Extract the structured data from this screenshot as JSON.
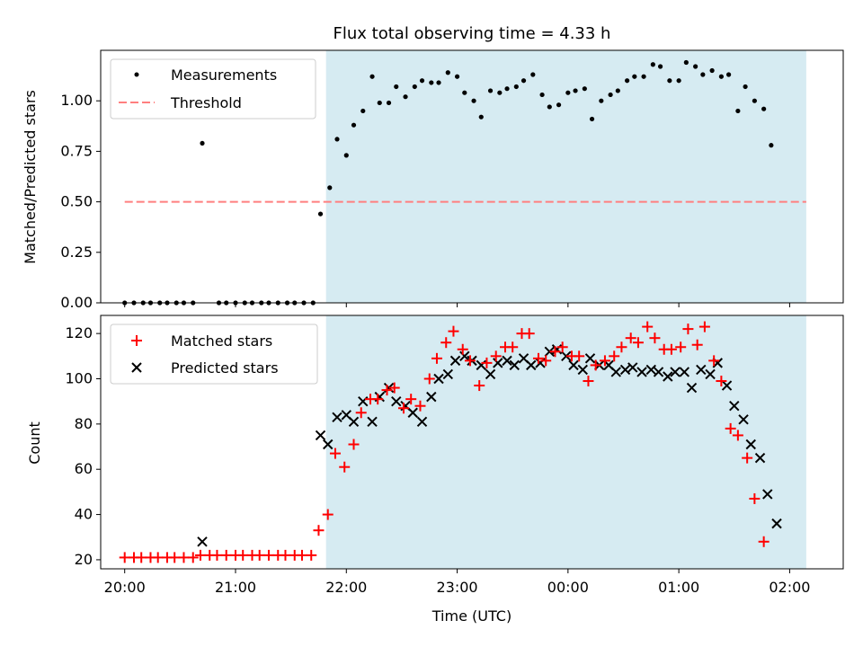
{
  "chart_data": [
    {
      "type": "scatter",
      "title": "Flux total observing time = 4.33 h",
      "xlabel": "",
      "ylabel": "Matched/Predicted stars",
      "ylim": [
        0,
        1.25
      ],
      "xlim": [
        "19:47",
        "02:29"
      ],
      "yticks": [
        "0.00",
        "0.25",
        "0.50",
        "0.75",
        "1.00"
      ],
      "yticks_values": [
        0,
        0.25,
        0.5,
        0.75,
        1.0
      ],
      "shaded_region": {
        "x_start": "21:49",
        "x_end": "02:09",
        "color": "#add8e6"
      },
      "threshold": {
        "name": "Threshold",
        "value": 0.5,
        "x_start": "20:00",
        "x_end": "02:09",
        "color": "#ff7f7f"
      },
      "legend": {
        "position": "top-left",
        "entries": [
          "Measurements",
          "Threshold"
        ]
      },
      "series": [
        {
          "name": "Measurements",
          "color": "#000000",
          "points": [
            [
              "20:00",
              0.0
            ],
            [
              "20:05",
              0.0
            ],
            [
              "20:10",
              0.0
            ],
            [
              "20:14",
              0.0
            ],
            [
              "20:19",
              0.0
            ],
            [
              "20:23",
              0.0
            ],
            [
              "20:28",
              0.0
            ],
            [
              "20:32",
              0.0
            ],
            [
              "20:37",
              0.0
            ],
            [
              "20:42",
              0.79
            ],
            [
              "20:51",
              0.0
            ],
            [
              "20:55",
              0.0
            ],
            [
              "21:00",
              0.0
            ],
            [
              "21:05",
              0.0
            ],
            [
              "21:09",
              0.0
            ],
            [
              "21:14",
              0.0
            ],
            [
              "21:18",
              0.0
            ],
            [
              "21:23",
              0.0
            ],
            [
              "21:28",
              0.0
            ],
            [
              "21:32",
              0.0
            ],
            [
              "21:37",
              0.0
            ],
            [
              "21:42",
              0.0
            ],
            [
              "21:46",
              0.44
            ],
            [
              "21:51",
              0.57
            ],
            [
              "21:55",
              0.81
            ],
            [
              "22:00",
              0.73
            ],
            [
              "22:04",
              0.88
            ],
            [
              "22:09",
              0.95
            ],
            [
              "22:14",
              1.12
            ],
            [
              "22:18",
              0.99
            ],
            [
              "22:23",
              0.99
            ],
            [
              "22:27",
              1.07
            ],
            [
              "22:32",
              1.02
            ],
            [
              "22:37",
              1.07
            ],
            [
              "22:41",
              1.1
            ],
            [
              "22:46",
              1.09
            ],
            [
              "22:50",
              1.09
            ],
            [
              "22:55",
              1.14
            ],
            [
              "23:00",
              1.12
            ],
            [
              "23:04",
              1.04
            ],
            [
              "23:09",
              1.0
            ],
            [
              "23:13",
              0.92
            ],
            [
              "23:18",
              1.05
            ],
            [
              "23:23",
              1.04
            ],
            [
              "23:27",
              1.06
            ],
            [
              "23:32",
              1.07
            ],
            [
              "23:36",
              1.1
            ],
            [
              "23:41",
              1.13
            ],
            [
              "23:46",
              1.03
            ],
            [
              "23:50",
              0.97
            ],
            [
              "23:55",
              0.98
            ],
            [
              "00:00",
              1.04
            ],
            [
              "00:04",
              1.05
            ],
            [
              "00:09",
              1.06
            ],
            [
              "00:13",
              0.91
            ],
            [
              "00:18",
              1.0
            ],
            [
              "00:23",
              1.03
            ],
            [
              "00:27",
              1.05
            ],
            [
              "00:32",
              1.1
            ],
            [
              "00:36",
              1.12
            ],
            [
              "00:41",
              1.12
            ],
            [
              "00:46",
              1.18
            ],
            [
              "00:50",
              1.17
            ],
            [
              "00:55",
              1.1
            ],
            [
              "01:00",
              1.1
            ],
            [
              "01:04",
              1.19
            ],
            [
              "01:09",
              1.17
            ],
            [
              "01:13",
              1.13
            ],
            [
              "01:18",
              1.15
            ],
            [
              "01:23",
              1.12
            ],
            [
              "01:27",
              1.13
            ],
            [
              "01:32",
              0.95
            ],
            [
              "01:36",
              1.07
            ],
            [
              "01:41",
              1.0
            ],
            [
              "01:46",
              0.96
            ],
            [
              "01:50",
              0.78
            ]
          ]
        }
      ]
    },
    {
      "type": "scatter",
      "title": "",
      "xlabel": "Time (UTC)",
      "ylabel": "Count",
      "ylim": [
        16,
        128
      ],
      "xlim": [
        "19:47",
        "02:29"
      ],
      "xticks": [
        "20:00",
        "21:00",
        "22:00",
        "23:00",
        "00:00",
        "01:00",
        "02:00"
      ],
      "yticks": [
        "20",
        "40",
        "60",
        "80",
        "100",
        "120"
      ],
      "yticks_values": [
        20,
        40,
        60,
        80,
        100,
        120
      ],
      "shaded_region": {
        "x_start": "21:49",
        "x_end": "02:09",
        "color": "#add8e6"
      },
      "legend": {
        "position": "top-left",
        "entries": [
          "Matched stars",
          "Predicted stars"
        ]
      },
      "series": [
        {
          "name": "Matched stars",
          "marker": "+",
          "color": "#ff0000",
          "points": [
            [
              "20:00",
              21
            ],
            [
              "20:05",
              21
            ],
            [
              "20:09",
              21
            ],
            [
              "20:14",
              21
            ],
            [
              "20:18",
              21
            ],
            [
              "20:23",
              21
            ],
            [
              "20:27",
              21
            ],
            [
              "20:32",
              21
            ],
            [
              "20:37",
              21
            ],
            [
              "20:41",
              22
            ],
            [
              "20:46",
              22
            ],
            [
              "20:50",
              22
            ],
            [
              "20:55",
              22
            ],
            [
              "21:00",
              22
            ],
            [
              "21:04",
              22
            ],
            [
              "21:09",
              22
            ],
            [
              "21:13",
              22
            ],
            [
              "21:18",
              22
            ],
            [
              "21:23",
              22
            ],
            [
              "21:27",
              22
            ],
            [
              "21:32",
              22
            ],
            [
              "21:36",
              22
            ],
            [
              "21:41",
              22
            ],
            [
              "21:45",
              33
            ],
            [
              "21:50",
              40
            ],
            [
              "21:54",
              67
            ],
            [
              "21:59",
              61
            ],
            [
              "22:04",
              71
            ],
            [
              "22:08",
              85
            ],
            [
              "22:13",
              91
            ],
            [
              "22:17",
              91
            ],
            [
              "22:22",
              95
            ],
            [
              "22:26",
              96
            ],
            [
              "22:31",
              87
            ],
            [
              "22:35",
              91
            ],
            [
              "22:40",
              88
            ],
            [
              "22:45",
              100
            ],
            [
              "22:49",
              109
            ],
            [
              "22:54",
              116
            ],
            [
              "22:58",
              121
            ],
            [
              "23:03",
              113
            ],
            [
              "23:07",
              108
            ],
            [
              "23:12",
              97
            ],
            [
              "23:16",
              107
            ],
            [
              "23:21",
              110
            ],
            [
              "23:26",
              114
            ],
            [
              "23:30",
              114
            ],
            [
              "23:35",
              120
            ],
            [
              "23:39",
              120
            ],
            [
              "23:44",
              109
            ],
            [
              "23:48",
              108
            ],
            [
              "23:53",
              112
            ],
            [
              "23:57",
              114
            ],
            [
              "00:02",
              110
            ],
            [
              "00:06",
              110
            ],
            [
              "00:11",
              99
            ],
            [
              "00:15",
              106
            ],
            [
              "00:20",
              108
            ],
            [
              "00:25",
              110
            ],
            [
              "00:29",
              114
            ],
            [
              "00:34",
              118
            ],
            [
              "00:38",
              116
            ],
            [
              "00:43",
              123
            ],
            [
              "00:47",
              118
            ],
            [
              "00:52",
              113
            ],
            [
              "00:56",
              113
            ],
            [
              "01:01",
              114
            ],
            [
              "01:05",
              122
            ],
            [
              "01:10",
              115
            ],
            [
              "01:14",
              123
            ],
            [
              "01:19",
              108
            ],
            [
              "01:23",
              99
            ],
            [
              "01:28",
              78
            ],
            [
              "01:32",
              75
            ],
            [
              "01:37",
              65
            ],
            [
              "01:41",
              47
            ],
            [
              "01:46",
              28
            ]
          ]
        },
        {
          "name": "Predicted stars",
          "marker": "x",
          "color": "#000000",
          "points": [
            [
              "20:42",
              28
            ],
            [
              "21:46",
              75
            ],
            [
              "21:50",
              71
            ],
            [
              "21:55",
              83
            ],
            [
              "22:00",
              84
            ],
            [
              "22:04",
              81
            ],
            [
              "22:09",
              90
            ],
            [
              "22:14",
              81
            ],
            [
              "22:18",
              92
            ],
            [
              "22:23",
              96
            ],
            [
              "22:27",
              90
            ],
            [
              "22:32",
              88
            ],
            [
              "22:36",
              85
            ],
            [
              "22:41",
              81
            ],
            [
              "22:46",
              92
            ],
            [
              "22:50",
              100
            ],
            [
              "22:55",
              102
            ],
            [
              "22:59",
              108
            ],
            [
              "23:04",
              110
            ],
            [
              "23:08",
              108
            ],
            [
              "23:13",
              106
            ],
            [
              "23:18",
              102
            ],
            [
              "23:22",
              107
            ],
            [
              "23:27",
              108
            ],
            [
              "23:31",
              106
            ],
            [
              "23:36",
              109
            ],
            [
              "23:40",
              106
            ],
            [
              "23:45",
              107
            ],
            [
              "23:50",
              112
            ],
            [
              "23:54",
              113
            ],
            [
              "23:59",
              110
            ],
            [
              "00:03",
              106
            ],
            [
              "00:08",
              104
            ],
            [
              "00:12",
              109
            ],
            [
              "00:17",
              106
            ],
            [
              "00:22",
              106
            ],
            [
              "00:26",
              103
            ],
            [
              "00:31",
              104
            ],
            [
              "00:35",
              105
            ],
            [
              "00:40",
              103
            ],
            [
              "00:45",
              104
            ],
            [
              "00:49",
              103
            ],
            [
              "00:54",
              101
            ],
            [
              "00:58",
              103
            ],
            [
              "01:03",
              103
            ],
            [
              "01:07",
              96
            ],
            [
              "01:12",
              104
            ],
            [
              "01:17",
              102
            ],
            [
              "01:21",
              107
            ],
            [
              "01:26",
              97
            ],
            [
              "01:30",
              88
            ],
            [
              "01:35",
              82
            ],
            [
              "01:39",
              71
            ],
            [
              "01:44",
              65
            ],
            [
              "01:48",
              49
            ],
            [
              "01:53",
              36
            ]
          ]
        }
      ]
    }
  ]
}
